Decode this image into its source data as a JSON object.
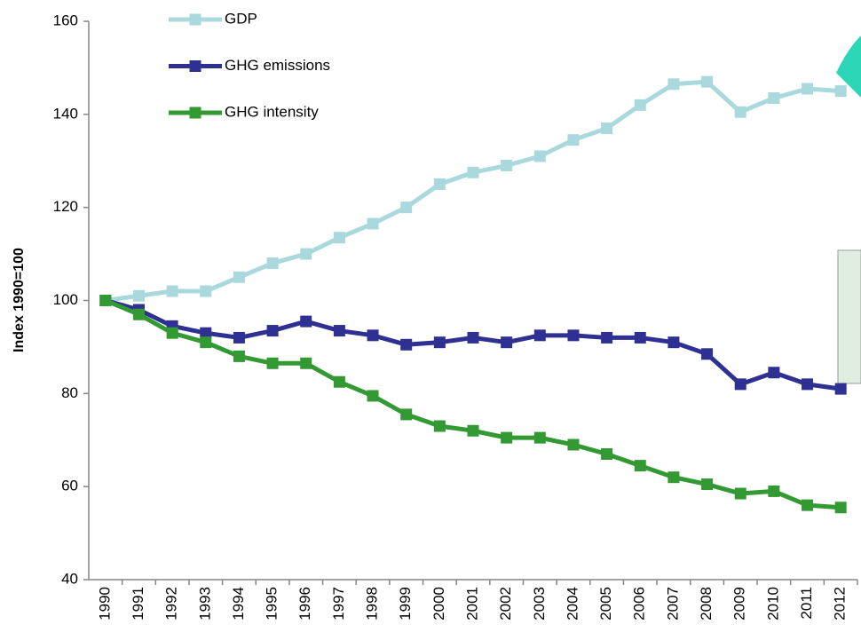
{
  "chart_data": {
    "type": "line",
    "y_label": "Index 1990=100",
    "categories": [
      "1990",
      "1991",
      "1992",
      "1993",
      "1994",
      "1995",
      "1996",
      "1997",
      "1998",
      "1999",
      "2000",
      "2001",
      "2002",
      "2003",
      "2004",
      "2005",
      "2006",
      "2007",
      "2008",
      "2009",
      "2010",
      "2011",
      "2012"
    ],
    "series": [
      {
        "name": "GDP",
        "color": "#a9d9dd",
        "values": [
          100,
          101,
          102,
          102,
          105,
          108,
          110,
          113.5,
          116.5,
          120,
          125,
          127.5,
          129,
          131,
          134.5,
          137,
          142,
          146.5,
          147,
          140.5,
          143.5,
          145.5,
          145
        ]
      },
      {
        "name": "GHG emissions",
        "color": "#2e3192",
        "values": [
          100,
          98,
          94.5,
          93,
          92,
          93.5,
          95.5,
          93.5,
          92.5,
          90.5,
          91,
          92,
          91,
          92.5,
          92.5,
          92,
          92,
          91,
          88.5,
          82,
          84.5,
          82,
          81
        ]
      },
      {
        "name": "GHG intensity",
        "color": "#339933",
        "values": [
          100,
          97,
          93,
          91,
          88,
          86.5,
          86.5,
          82.5,
          79.5,
          75.5,
          73,
          72,
          70.5,
          70.5,
          69,
          67,
          64.5,
          62,
          60.5,
          58.5,
          59,
          56,
          55.5
        ]
      }
    ],
    "ylim": [
      40,
      160
    ],
    "yticks": [
      40,
      60,
      80,
      100,
      120,
      140,
      160
    ],
    "grid": false
  }
}
